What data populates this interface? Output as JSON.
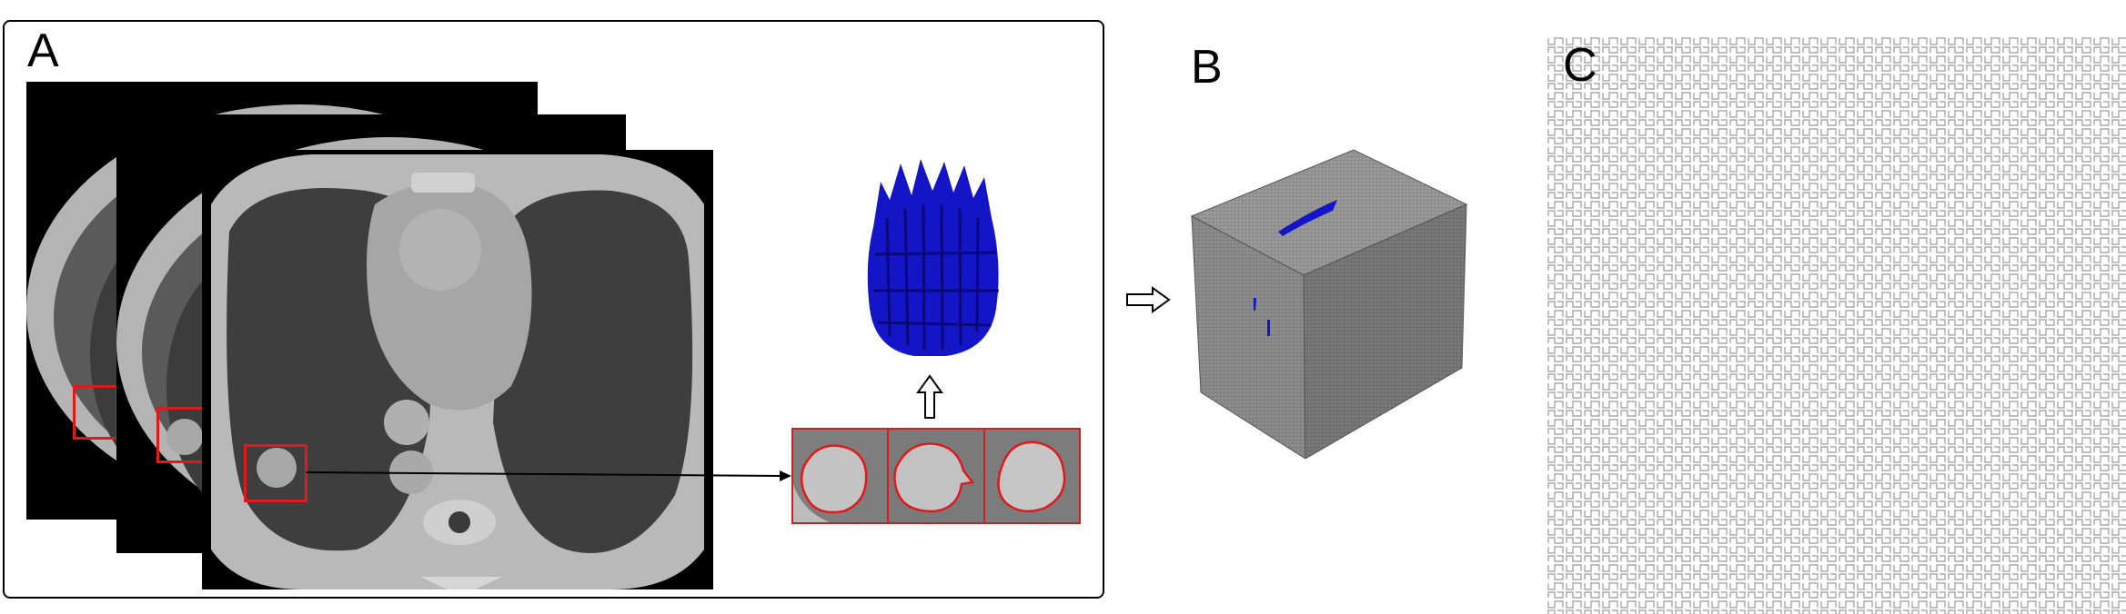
{
  "figure": {
    "panel_labels": {
      "a": "A",
      "b": "B",
      "c": "C"
    },
    "colors": {
      "roi_outline": "#e01a1a",
      "tumor_render": "#1010c8",
      "cube_gray": "#8a8a8a",
      "ct_background": "#000000",
      "maze_line": "#9a9a9a"
    },
    "icons": {
      "up_arrow": "hollow-up-arrow-icon",
      "right_arrow": "hollow-right-arrow-icon",
      "connector": "arrow-connector"
    }
  }
}
